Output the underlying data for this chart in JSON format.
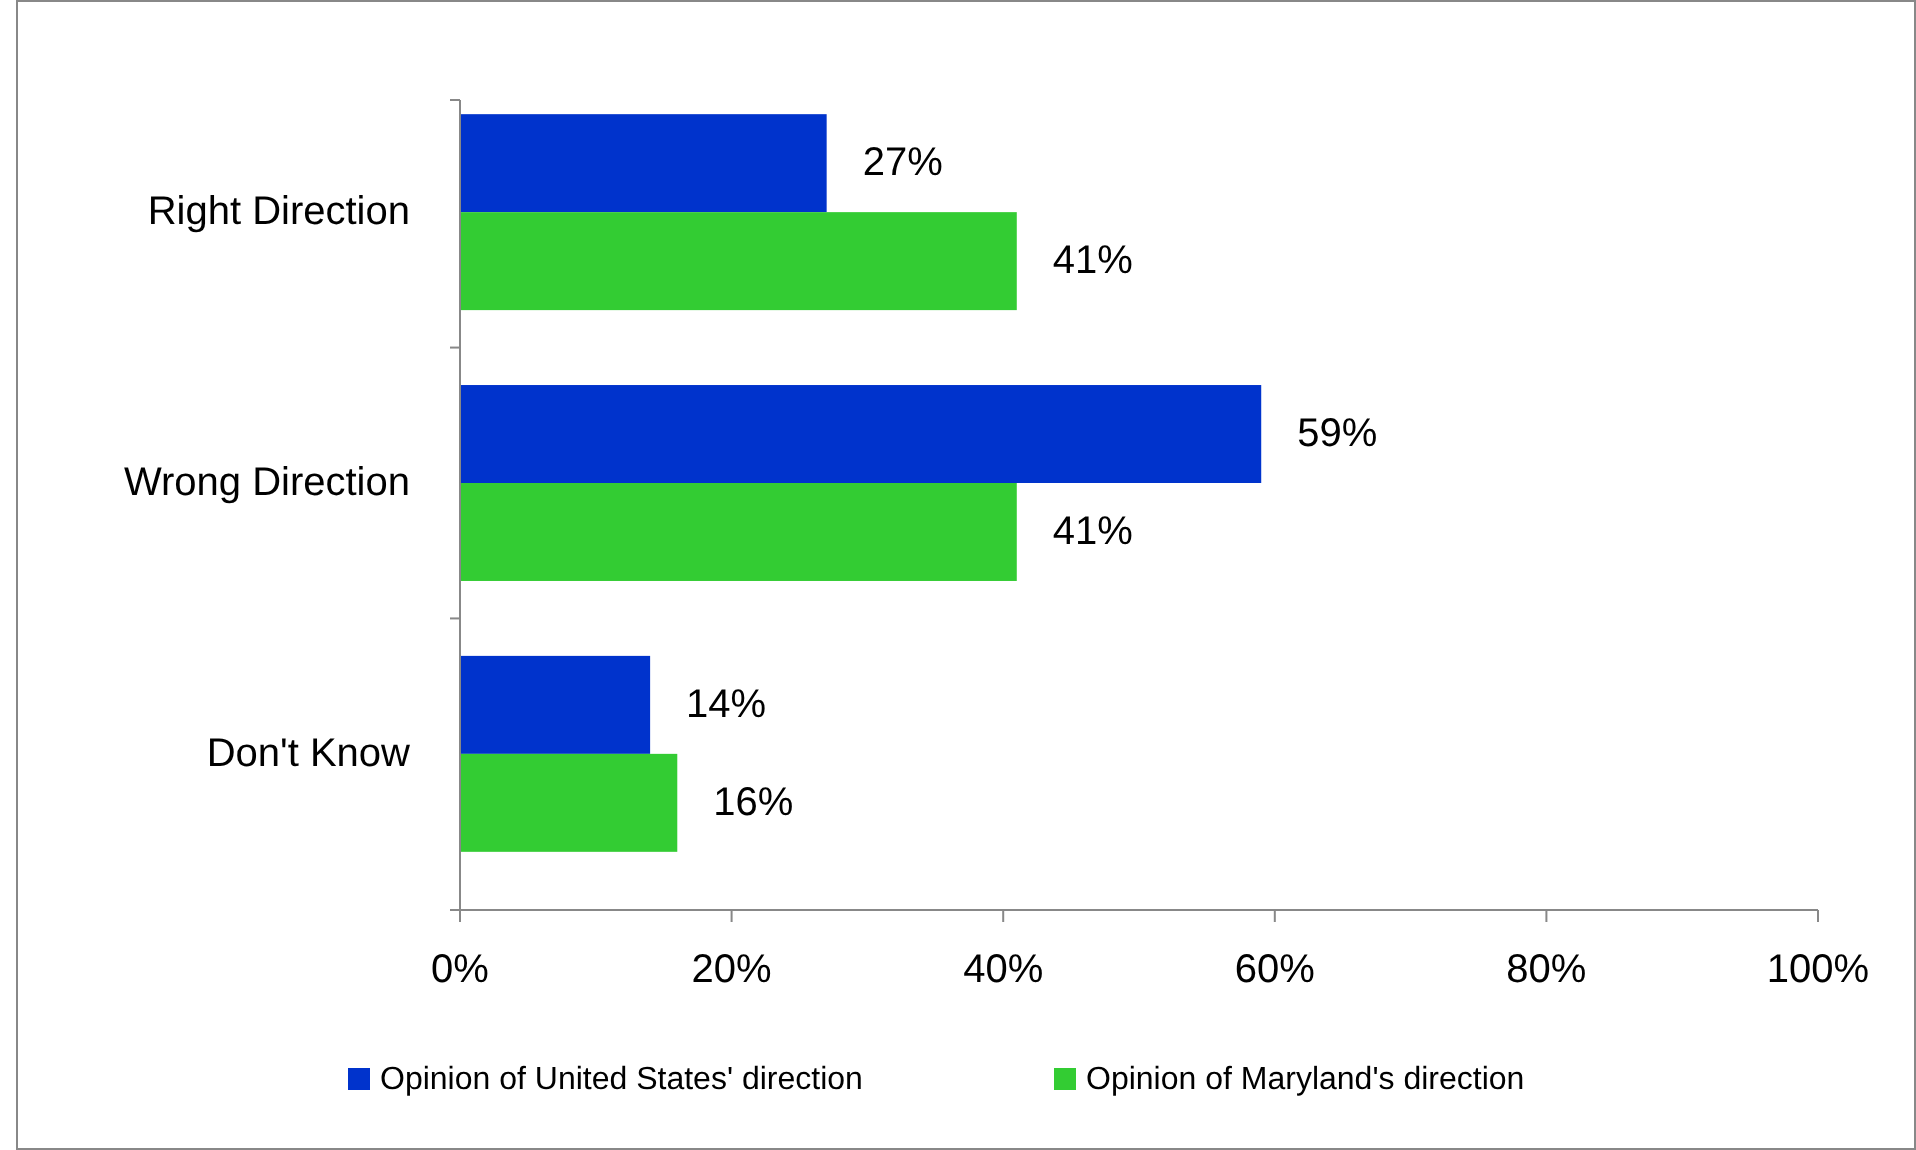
{
  "chart_data": {
    "type": "bar",
    "orientation": "horizontal",
    "categories": [
      "Right Direction",
      "Wrong Direction",
      "Don't Know"
    ],
    "series": [
      {
        "name": "Opinion of United States' direction",
        "color": "#0033cc",
        "values": [
          27,
          59,
          14
        ]
      },
      {
        "name": "Opinion of Maryland's direction",
        "color": "#33cc33",
        "values": [
          41,
          41,
          16
        ]
      }
    ],
    "xlim": [
      0,
      100
    ],
    "xticks": [
      {
        "value": 0,
        "label": "0%"
      },
      {
        "value": 20,
        "label": "20%"
      },
      {
        "value": 40,
        "label": "40%"
      },
      {
        "value": 60,
        "label": "60%"
      },
      {
        "value": 80,
        "label": "80%"
      },
      {
        "value": 100,
        "label": "100%"
      }
    ],
    "value_labels": [
      [
        "27%",
        "59%",
        "14%"
      ],
      [
        "41%",
        "41%",
        "16%"
      ]
    ],
    "legend": "bottom",
    "grid": false
  }
}
